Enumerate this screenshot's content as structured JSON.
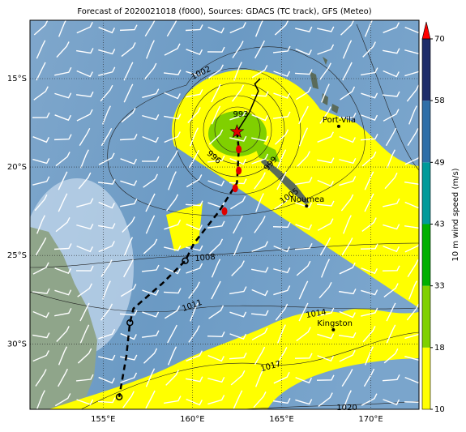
{
  "title": "Forecast of 2020021018 (f000), Sources: GDACS (TC track), GFS (Meteo)",
  "map": {
    "xlim": [
      150.9,
      172.7
    ],
    "ylim": [
      -11.7,
      -33.7
    ],
    "xticks": [
      {
        "value": 155,
        "label": "155°E"
      },
      {
        "value": 160,
        "label": "160°E"
      },
      {
        "value": 165,
        "label": "165°E"
      },
      {
        "value": 170,
        "label": "170°E"
      }
    ],
    "yticks": [
      {
        "value": -15,
        "label": "15°S"
      },
      {
        "value": -20,
        "label": "20°S"
      },
      {
        "value": -25,
        "label": "25°S"
      },
      {
        "value": -30,
        "label": "30°S"
      }
    ],
    "grid": true
  },
  "colorbar": {
    "label": "10 m wind speed (m/s)",
    "ticks": [
      10,
      18,
      33,
      43,
      49,
      58,
      70
    ],
    "colors": [
      "#ffff00",
      "#80d000",
      "#00b000",
      "#009a9a",
      "#2f6fa8",
      "#1e2c6a"
    ],
    "extend_color": "#ff0000"
  },
  "track": {
    "current": {
      "lon": 162.5,
      "lat": -18.0
    },
    "forecast": {
      "lon": [
        162.5,
        163.2,
        163.7,
        163.5,
        163.8
      ],
      "lat": [
        -18.0,
        -16.9,
        -15.7,
        -15.3,
        -15.0
      ]
    },
    "past": {
      "lon": [
        162.5,
        162.6,
        162.5,
        161.5,
        160.1,
        159.6,
        158.3,
        156.7,
        156.5,
        156.3,
        155.9
      ],
      "lat": [
        -18.0,
        -19.0,
        -20.9,
        -22.5,
        -24.3,
        -25.3,
        -26.6,
        -28.0,
        -28.8,
        -30.7,
        -33.0
      ]
    },
    "red_points": {
      "lon": [
        162.6,
        162.6,
        162.4,
        161.8
      ],
      "lat": [
        -19.0,
        -20.2,
        -21.2,
        -22.5
      ]
    },
    "open_points": {
      "lon": [
        159.6,
        156.5,
        155.9
      ],
      "lat": [
        -25.3,
        -28.8,
        -33.0
      ]
    }
  },
  "places": [
    {
      "name": "Port-Vila",
      "lon": 168.2,
      "lat": -17.7
    },
    {
      "name": "Noumea",
      "lon": 166.4,
      "lat": -22.2
    },
    {
      "name": "Kingston",
      "lon": 167.9,
      "lat": -29.2
    }
  ],
  "isobar_labels": [
    1002,
    999,
    996,
    993,
    1005,
    1008,
    1011,
    1014,
    1017,
    1020
  ]
}
